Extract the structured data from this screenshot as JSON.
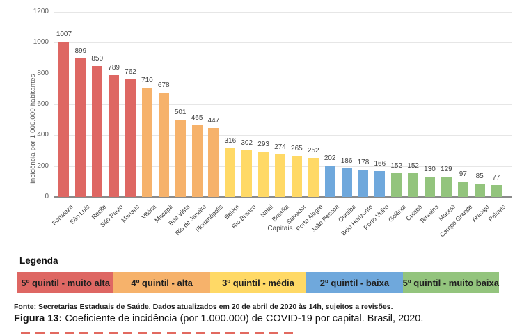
{
  "chart_data": {
    "type": "bar",
    "title": "",
    "xlabel": "Capitais",
    "ylabel": "Incidência por 1.000.000 habitantes",
    "ylim": [
      0,
      1200
    ],
    "yticks": [
      0,
      200,
      400,
      600,
      800,
      1000,
      1200
    ],
    "grid": true,
    "categories": [
      "Fortaleza",
      "São Luís",
      "Recife",
      "São Paulo",
      "Manaus",
      "Vitória",
      "Macapá",
      "Boa Vista",
      "Rio de Janeiro",
      "Florianópolis",
      "Belém",
      "Rio Branco",
      "Natal",
      "Brasília",
      "Salvador",
      "Porto Alegre",
      "João Pessoa",
      "Curitiba",
      "Belo Horizonte",
      "Porto Velho",
      "Goiânia",
      "Cuiabá",
      "Teresina",
      "Maceió",
      "Campo Grande",
      "Aracaju",
      "Palmas"
    ],
    "values": [
      1007,
      899,
      850,
      789,
      762,
      710,
      678,
      501,
      465,
      447,
      316,
      302,
      293,
      274,
      265,
      252,
      202,
      186,
      178,
      166,
      152,
      152,
      130,
      129,
      97,
      85,
      77
    ],
    "groups": [
      "muito_alta",
      "muito_alta",
      "muito_alta",
      "muito_alta",
      "muito_alta",
      "alta",
      "alta",
      "alta",
      "alta",
      "alta",
      "media",
      "media",
      "media",
      "media",
      "media",
      "media",
      "baixa",
      "baixa",
      "baixa",
      "baixa",
      "muito_baixa",
      "muito_baixa",
      "muito_baixa",
      "muito_baixa",
      "muito_baixa",
      "muito_baixa",
      "muito_baixa"
    ],
    "group_colors": {
      "muito_alta": "#de6763",
      "alta": "#f6b26b",
      "media": "#ffd966",
      "baixa": "#6fa8dc",
      "muito_baixa": "#93c47d"
    },
    "legend_position": "bottom"
  },
  "legend": {
    "title": "Legenda",
    "items": [
      {
        "label": "5º quintil - muito alta",
        "color": "#de6763"
      },
      {
        "label": "4º quintil - alta",
        "color": "#f6b26b"
      },
      {
        "label": "3º quintil - média",
        "color": "#ffd966"
      },
      {
        "label": "2º quintil - baixa",
        "color": "#6fa8dc"
      },
      {
        "label": "5º quintil - muito baixa",
        "color": "#93c47d"
      }
    ]
  },
  "footer": {
    "fonte": "Fonte: Secretarias Estaduais de Saúde. Dados atualizados em 20 de abril de 2020 às 14h, sujeitos a revisões.",
    "caption_label": "Figura 13:",
    "caption_text": " Coeficiente de incidência (por 1.000.000) de COVID-19 por capital. Brasil, 2020."
  }
}
